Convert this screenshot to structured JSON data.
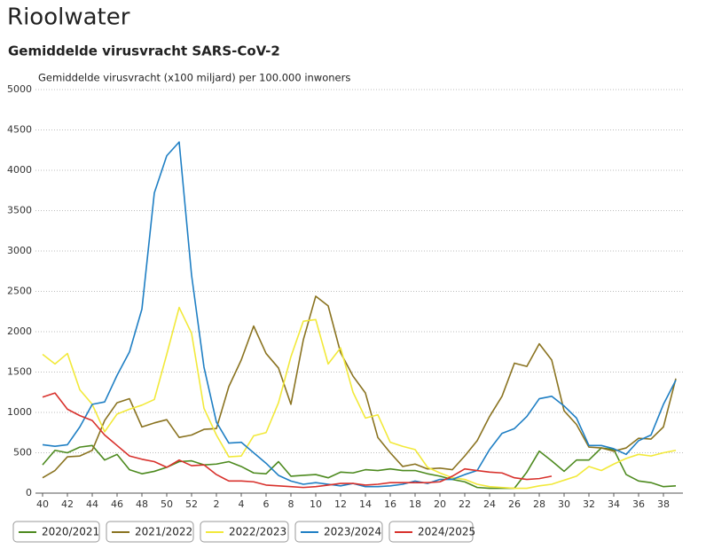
{
  "chart_data": {
    "type": "line",
    "title": "Rioolwater",
    "subtitle": "Gemiddelde virusvracht SARS-CoV-2",
    "y_label": "Gemiddelde virusvracht (x100 miljard) per 100.000 inwoners",
    "categories": [
      "40",
      null,
      "42",
      null,
      "44",
      null,
      "46",
      null,
      "48",
      null,
      "50",
      null,
      "52",
      null,
      "2",
      null,
      "4",
      null,
      "6",
      null,
      "8",
      null,
      "10",
      null,
      "12",
      null,
      "14",
      null,
      "16",
      null,
      "18",
      null,
      "20",
      null,
      "22",
      null,
      "24",
      null,
      "26",
      null,
      "28",
      null,
      "30",
      null,
      "32",
      null,
      "34",
      null,
      "36",
      null,
      "38",
      null
    ],
    "ylim": [
      0,
      5000
    ],
    "yticks": [
      0,
      500,
      1000,
      1500,
      2000,
      2500,
      3000,
      3500,
      4000,
      4500,
      5000
    ],
    "grid": true,
    "legend": "bottom",
    "series": [
      {
        "name": "2020/2021",
        "color": "#4d8a1f",
        "values": [
          350,
          530,
          500,
          570,
          590,
          410,
          480,
          290,
          240,
          270,
          320,
          390,
          400,
          350,
          360,
          390,
          330,
          250,
          240,
          390,
          210,
          220,
          230,
          190,
          260,
          250,
          290,
          280,
          300,
          280,
          280,
          240,
          210,
          170,
          140,
          70,
          60,
          60,
          60,
          260,
          520,
          400,
          270,
          410,
          410,
          560,
          540,
          230,
          150,
          130,
          80,
          90
        ]
      },
      {
        "name": "2021/2022",
        "color": "#8a7320",
        "values": [
          190,
          280,
          450,
          460,
          530,
          900,
          1120,
          1170,
          820,
          870,
          910,
          690,
          720,
          790,
          800,
          1320,
          1650,
          2070,
          1730,
          1550,
          1100,
          1900,
          2440,
          2320,
          1740,
          1450,
          1240,
          690,
          500,
          330,
          360,
          300,
          310,
          290,
          460,
          650,
          950,
          1200,
          1610,
          1570,
          1850,
          1650,
          1020,
          850,
          570,
          560,
          520,
          560,
          680,
          670,
          820,
          1420
        ]
      },
      {
        "name": "2022/2023",
        "color": "#f2e93a",
        "values": [
          1720,
          1600,
          1730,
          1280,
          1100,
          760,
          980,
          1040,
          1090,
          1160,
          1720,
          2300,
          1980,
          1050,
          720,
          450,
          460,
          710,
          750,
          1120,
          1690,
          2130,
          2150,
          1600,
          1800,
          1250,
          930,
          970,
          630,
          580,
          540,
          320,
          250,
          190,
          170,
          110,
          80,
          70,
          60,
          60,
          90,
          110,
          160,
          210,
          330,
          280,
          360,
          430,
          480,
          460,
          500,
          530
        ]
      },
      {
        "name": "2023/2024",
        "color": "#1f7fc4",
        "values": [
          600,
          580,
          600,
          820,
          1100,
          1130,
          1460,
          1750,
          2280,
          3720,
          4180,
          4350,
          2700,
          1560,
          880,
          620,
          630,
          500,
          370,
          220,
          150,
          110,
          130,
          110,
          90,
          120,
          80,
          80,
          90,
          110,
          150,
          120,
          170,
          170,
          230,
          280,
          540,
          740,
          800,
          950,
          1170,
          1200,
          1080,
          930,
          590,
          590,
          550,
          480,
          650,
          720,
          1100,
          1400
        ]
      },
      {
        "name": "2024/2025",
        "color": "#d8312c",
        "values": [
          1190,
          1240,
          1040,
          960,
          900,
          720,
          590,
          460,
          420,
          390,
          320,
          410,
          340,
          350,
          230,
          150,
          150,
          140,
          100,
          90,
          80,
          70,
          80,
          100,
          120,
          120,
          100,
          110,
          130,
          130,
          130,
          130,
          140,
          210,
          300,
          280,
          260,
          250,
          190,
          170,
          180,
          210,
          null,
          null,
          null,
          null,
          null,
          null,
          null,
          null,
          null,
          null
        ]
      }
    ]
  }
}
